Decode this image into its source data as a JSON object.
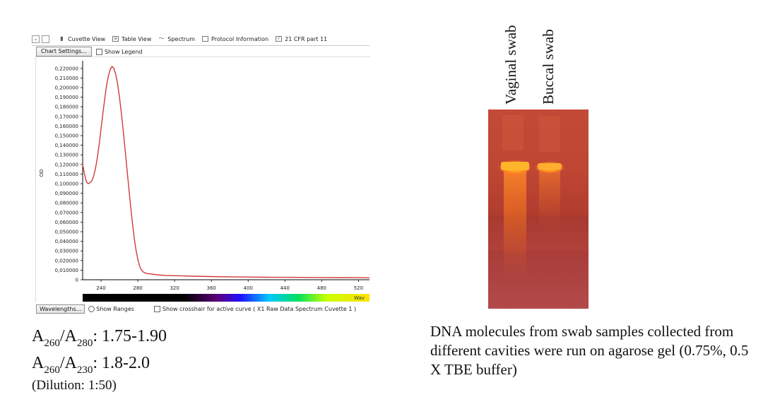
{
  "toolbar": {
    "tabs": [
      {
        "label": "Cuvette View",
        "icon": "cuvette-icon"
      },
      {
        "label": "Table View",
        "icon": "table-icon"
      },
      {
        "label": "Spectrum",
        "icon": "spectrum-icon"
      },
      {
        "label": "Protocol Information",
        "icon": "protocol-icon"
      },
      {
        "label": "21 CFR part 11",
        "icon": "checkbox-icon"
      }
    ]
  },
  "chart_settings": {
    "button_label": "Chart Settings...",
    "show_legend_label": "Show Legend",
    "show_legend_checked": false
  },
  "bottom_bar": {
    "wavelengths_label": "Wavelengths...",
    "show_ranges_label": "Show Ranges",
    "crosshair_label": "Show crosshair for active curve ( X1 Raw Data Spectrum Cuvette 1 )"
  },
  "chart_data": {
    "type": "line",
    "ylabel": "OD",
    "xlabel": "Wav",
    "xlim": [
      220,
      532
    ],
    "ylim": [
      0,
      0.225
    ],
    "x_ticks": [
      "240",
      "280",
      "320",
      "360",
      "400",
      "440",
      "480",
      "520"
    ],
    "y_ticks": [
      "0,220000",
      "0,210000",
      "0,200000",
      "0,190000",
      "0,180000",
      "0,170000",
      "0,160000",
      "0,150000",
      "0,140000",
      "0,130000",
      "0,120000",
      "0,110000",
      "0,100000",
      "0,090000",
      "0,080000",
      "0,070000",
      "0,060000",
      "0,050000",
      "0,040000",
      "0,030000",
      "0,020000",
      "0,010000",
      "0"
    ],
    "y_tick_values": [
      0.22,
      0.21,
      0.2,
      0.19,
      0.18,
      0.17,
      0.16,
      0.15,
      0.14,
      0.13,
      0.12,
      0.11,
      0.1,
      0.09,
      0.08,
      0.07,
      0.06,
      0.05,
      0.04,
      0.03,
      0.02,
      0.01,
      0
    ],
    "series": [
      {
        "color": "#d03a3a",
        "x": [
          220,
          222,
          224,
          226,
          228,
          230,
          232,
          234,
          236,
          238,
          240,
          242,
          244,
          246,
          248,
          250,
          252,
          254,
          256,
          258,
          260,
          262,
          264,
          266,
          268,
          270,
          272,
          274,
          276,
          278,
          280,
          282,
          284,
          286,
          288,
          290,
          292,
          294,
          296,
          298,
          300,
          305,
          310,
          320,
          330,
          340,
          360,
          380,
          400,
          420,
          440,
          460,
          480,
          500,
          520,
          532
        ],
        "y": [
          0.12,
          0.11,
          0.102,
          0.1,
          0.101,
          0.103,
          0.108,
          0.116,
          0.127,
          0.141,
          0.157,
          0.173,
          0.188,
          0.202,
          0.212,
          0.219,
          0.222,
          0.22,
          0.214,
          0.204,
          0.19,
          0.174,
          0.156,
          0.137,
          0.117,
          0.097,
          0.078,
          0.06,
          0.044,
          0.031,
          0.021,
          0.014,
          0.01,
          0.008,
          0.007,
          0.0065,
          0.0062,
          0.006,
          0.0058,
          0.0055,
          0.0053,
          0.0048,
          0.0045,
          0.0042,
          0.004,
          0.0037,
          0.0033,
          0.003,
          0.0028,
          0.0026,
          0.0025,
          0.0024,
          0.0023,
          0.0022,
          0.0021,
          0.002
        ]
      }
    ],
    "grid": false,
    "legend": "none"
  },
  "ratios": {
    "r1_a": "A",
    "r1_sub1": "260",
    "r1_mid": "/A",
    "r1_sub2": "280",
    "r1_value": ": 1.75-1.90",
    "r2_a": "A",
    "r2_sub1": "260",
    "r2_mid": "/A",
    "r2_sub2": "230",
    "r2_value": ": 1.8-2.0",
    "dilution": "(Dilution: 1:50)"
  },
  "gel": {
    "lanes": [
      "Vaginal swab",
      "Buccal swab"
    ],
    "caption": "DNA molecules from swab samples collected from different cavities were run on agarose gel (0.75%, 0.5 X TBE buffer)"
  }
}
